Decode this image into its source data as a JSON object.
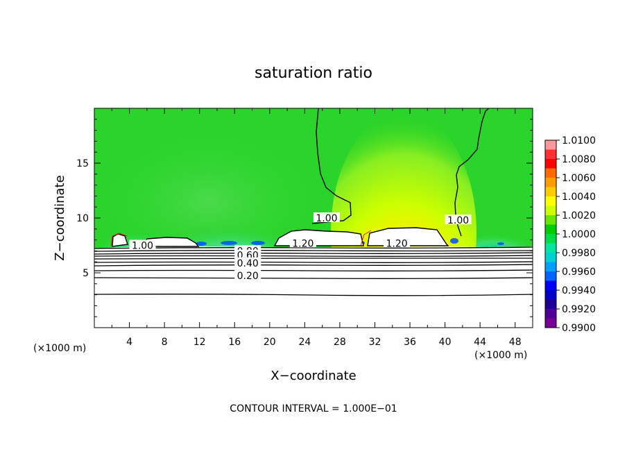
{
  "chart_data": {
    "type": "contour",
    "title": "saturation ratio",
    "xlabel": "X−coordinate",
    "ylabel": "Z−coordinate",
    "x_unit_left": "(×1000 m)",
    "x_unit_right": "(×1000 m)",
    "xlim": [
      0,
      50
    ],
    "ylim": [
      0,
      20
    ],
    "x_ticks": [
      4,
      8,
      12,
      16,
      20,
      24,
      28,
      32,
      36,
      40,
      44,
      48
    ],
    "y_ticks": [
      5,
      10,
      15
    ],
    "x_tick_labels": [
      "4",
      "8",
      "12",
      "16",
      "20",
      "24",
      "28",
      "32",
      "36",
      "40",
      "44",
      "48"
    ],
    "y_tick_labels": [
      "5",
      "10",
      "15"
    ],
    "colorbar": {
      "min": 0.99,
      "max": 1.01,
      "labels": [
        "1.0100",
        "1.0080",
        "1.0060",
        "1.0040",
        "1.0020",
        "1.0000",
        "0.9980",
        "0.9960",
        "0.9940",
        "0.9920",
        "0.9900"
      ],
      "colors": [
        "#ff9999",
        "#ff3030",
        "#ff0000",
        "#ff6a00",
        "#ff9c00",
        "#ffcc00",
        "#ffff00",
        "#ccff00",
        "#66e600",
        "#00cc00",
        "#00dd44",
        "#00e6a0",
        "#00d2d2",
        "#00a0ff",
        "#0064ff",
        "#0000ff",
        "#0000c8",
        "#1e0096",
        "#500096",
        "#780096"
      ]
    },
    "contour_labels": [
      {
        "text": "1.00",
        "x": 26.5,
        "z": 10
      },
      {
        "text": "1.00",
        "x": 41.5,
        "z": 9.8
      },
      {
        "text": "1.00",
        "x": 5.5,
        "z": 7.5
      },
      {
        "text": "1.20",
        "x": 23.8,
        "z": 7.7
      },
      {
        "text": "1.20",
        "x": 34.5,
        "z": 7.7
      },
      {
        "text": "0.80",
        "x": 17.5,
        "z": 7.0
      },
      {
        "text": "0.60",
        "x": 17.5,
        "z": 6.6
      },
      {
        "text": "0.40",
        "x": 17.5,
        "z": 5.9
      },
      {
        "text": "0.20",
        "x": 17.5,
        "z": 4.75
      }
    ],
    "contour_interval_text": "CONTOUR INTERVAL =  1.000E−01"
  }
}
